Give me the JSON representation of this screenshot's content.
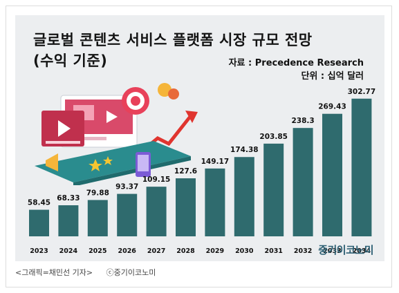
{
  "title_line1": "글로벌 콘텐츠 서비스 플랫폼 시장 규모 전망",
  "title_line2": "(수익 기준)",
  "source": "자료 : Precedence Research",
  "unit": "단위 : 십억 달러",
  "watermark": "중기이코노미",
  "caption_graphic": "<그래픽=채민선 기자>",
  "caption_copyright": "ⓒ중기이코노미",
  "colors": {
    "bar": "#2f6b6e",
    "background": "#eceef0",
    "text": "#111111"
  },
  "chart_data": {
    "type": "bar",
    "categories": [
      "2023",
      "2024",
      "2025",
      "2026",
      "2027",
      "2028",
      "2029",
      "2030",
      "2031",
      "2032",
      "2033",
      "2034"
    ],
    "values": [
      58.45,
      68.33,
      79.88,
      93.37,
      109.15,
      127.6,
      149.17,
      174.38,
      203.85,
      238.3,
      269.43,
      302.77
    ],
    "value_labels": [
      "58.45",
      "68.33",
      "79.88",
      "93.37",
      "109.15",
      "127.6",
      "149.17",
      "174.38",
      "203.85",
      "238.3",
      "269.43",
      "302.77"
    ],
    "title": "글로벌 콘텐츠 서비스 플랫폼 시장 규모 전망 (수익 기준)",
    "xlabel": "",
    "ylabel": "",
    "ylim": [
      0,
      310
    ],
    "grid": false,
    "legend": "none"
  }
}
